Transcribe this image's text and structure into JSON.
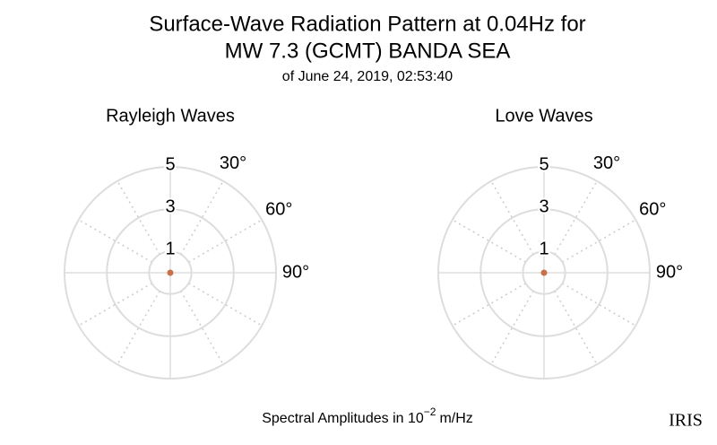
{
  "title": [
    "Surface-Wave Radiation Pattern at 0.04Hz for",
    "MW 7.3 (GCMT) BANDA SEA"
  ],
  "subtitle": "of June 24, 2019, 02:53:40",
  "xlabel": {
    "text": "Spectral Amplitudes in 10",
    "exponent": "−2",
    "unit": "m/Hz"
  },
  "logo": "IRIS",
  "chart_data": [
    {
      "type": "polar",
      "title": "Rayleigh Waves",
      "rlim": [
        0,
        5
      ],
      "rticks": [
        1,
        3,
        5
      ],
      "thetaticks": [
        {
          "value": 30,
          "label": "30°"
        },
        {
          "value": 60,
          "label": "60°"
        },
        {
          "value": 90,
          "label": "90°"
        }
      ],
      "thetagrid_step": 30,
      "grid": true,
      "series": [
        {
          "color": "#c8704a",
          "theta": [
            0
          ],
          "r": [
            0
          ]
        }
      ]
    },
    {
      "type": "polar",
      "title": "Love Waves",
      "rlim": [
        0,
        5
      ],
      "rticks": [
        1,
        3,
        5
      ],
      "thetaticks": [
        {
          "value": 30,
          "label": "30°"
        },
        {
          "value": 60,
          "label": "60°"
        },
        {
          "value": 90,
          "label": "90°"
        }
      ],
      "thetagrid_step": 30,
      "grid": true,
      "series": [
        {
          "color": "#c8704a",
          "theta": [
            0
          ],
          "r": [
            0
          ]
        }
      ]
    }
  ]
}
